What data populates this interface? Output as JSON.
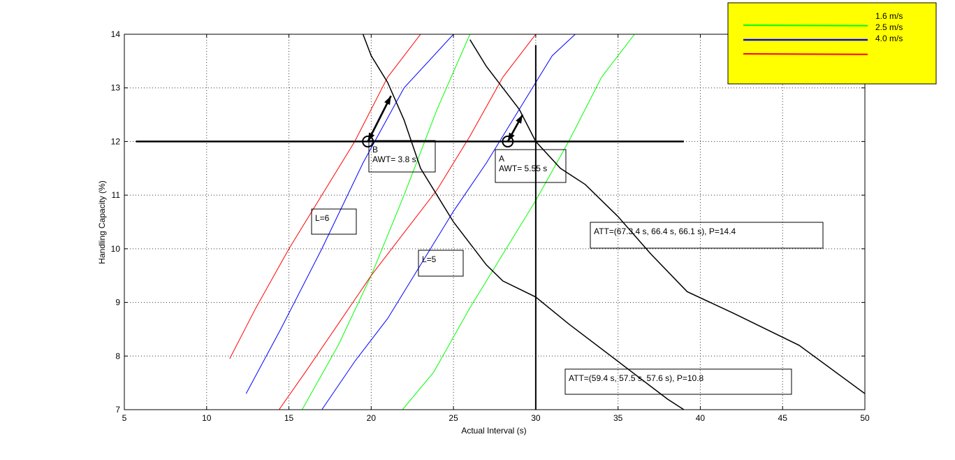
{
  "chart_data": {
    "type": "line",
    "xlabel": "Actual Interval (s)",
    "ylabel": "Handling Capacity (%)",
    "xlim": [
      5,
      50
    ],
    "ylim": [
      7,
      14
    ],
    "xticks": [
      "5",
      "10",
      "15",
      "20",
      "25",
      "30",
      "35",
      "40",
      "45",
      "50"
    ],
    "yticks": [
      "7",
      "8",
      "9",
      "10",
      "11",
      "12",
      "13",
      "14"
    ],
    "grid": true,
    "legend": {
      "placement": "top-right",
      "background": "#ffff00",
      "entries": [
        {
          "name": "1.6 m/s",
          "color": "#00ff00"
        },
        {
          "name": "2.5 m/s",
          "color": "#0000ff"
        },
        {
          "name": "4.0 m/s",
          "color": "#ff0000"
        }
      ]
    },
    "series": [
      {
        "name": "1.6 m/s",
        "group": "L=6",
        "color": "#00ff00",
        "x": [
          15.8,
          18,
          20,
          22,
          24,
          26
        ],
        "y": [
          7.0,
          8.2,
          9.5,
          11.0,
          12.6,
          14.0
        ]
      },
      {
        "name": "2.5 m/s",
        "group": "L=6",
        "color": "#0000ff",
        "x": [
          12.4,
          14.5,
          17,
          19.5,
          22,
          25
        ],
        "y": [
          7.3,
          8.5,
          10.0,
          11.6,
          13.0,
          14.0
        ]
      },
      {
        "name": "4.0 m/s",
        "group": "L=6",
        "color": "#ff0000",
        "x": [
          11.4,
          13,
          15,
          17,
          19,
          21,
          23
        ],
        "y": [
          7.95,
          8.9,
          10.0,
          11.0,
          12.0,
          13.2,
          14.0
        ]
      },
      {
        "name": "1.6 m/s",
        "group": "L=5",
        "color": "#00ff00",
        "x": [
          21.9,
          23.8,
          26,
          28,
          30,
          32,
          34,
          36
        ],
        "y": [
          7.0,
          7.7,
          8.9,
          9.9,
          10.9,
          12.0,
          13.2,
          14.0
        ]
      },
      {
        "name": "2.5 m/s",
        "group": "L=5",
        "color": "#0000ff",
        "x": [
          17,
          19,
          21,
          23,
          25,
          27,
          29,
          31,
          32.4
        ],
        "y": [
          7.0,
          7.9,
          8.7,
          9.7,
          10.7,
          11.6,
          12.6,
          13.6,
          14.0
        ]
      },
      {
        "name": "4.0 m/s",
        "group": "L=5",
        "color": "#ff0000",
        "x": [
          14.4,
          16,
          18,
          20,
          22,
          24,
          26,
          28,
          30
        ],
        "y": [
          7.0,
          7.7,
          8.6,
          9.5,
          10.3,
          11.1,
          12.1,
          13.2,
          14.0
        ]
      },
      {
        "name": "",
        "group": "ATT P=10.8",
        "color": "#000000",
        "x": [
          19.5,
          20,
          21,
          22,
          23,
          25,
          27,
          28,
          30,
          32,
          35,
          38,
          39
        ],
        "y": [
          14.0,
          13.6,
          13.1,
          12.4,
          11.5,
          10.5,
          9.7,
          9.4,
          9.1,
          8.6,
          7.9,
          7.2,
          7.0
        ]
      },
      {
        "name": "",
        "group": "ATT P=14.4",
        "color": "#000000",
        "x": [
          26,
          27,
          29,
          30,
          31.5,
          33,
          35,
          37,
          39.2,
          42,
          46,
          50
        ],
        "y": [
          13.9,
          13.4,
          12.6,
          12.0,
          11.5,
          11.2,
          10.6,
          9.9,
          9.2,
          8.8,
          8.2,
          7.3
        ]
      }
    ],
    "reference_lines": [
      {
        "orientation": "horizontal",
        "y": 12.0,
        "x_from": 5.7,
        "x_to": 39.0
      },
      {
        "orientation": "vertical",
        "x": 30.0,
        "y_from": 7.0,
        "y_to": 13.8
      }
    ],
    "points": [
      {
        "label": "B",
        "x": 19.8,
        "y": 12.0
      },
      {
        "label": "A",
        "x": 28.3,
        "y": 12.0
      }
    ],
    "arrows": [
      {
        "x1": 19.8,
        "y1": 12.0,
        "x2": 21.2,
        "y2": 12.85
      },
      {
        "x1": 21.2,
        "y1": 12.85,
        "x2": 19.8,
        "y2": 12.0
      },
      {
        "x1": 28.3,
        "y1": 12.0,
        "x2": 29.2,
        "y2": 12.5
      },
      {
        "x1": 29.2,
        "y1": 12.5,
        "x2": 28.3,
        "y2": 12.0
      }
    ],
    "annotations": [
      {
        "lines": [
          "B",
          "AWT= 3.8 s"
        ]
      },
      {
        "lines": [
          "A",
          "AWT= 5.55 s"
        ]
      },
      {
        "lines": [
          "L=6"
        ]
      },
      {
        "lines": [
          "L=5"
        ]
      },
      {
        "lines": [
          "ATT=(67.3.4 s, 66.4 s, 66.1 s), P=14.4"
        ]
      },
      {
        "lines": [
          "ATT=(59.4 s, 57.5 s, 57.6 s),  P=10.8"
        ]
      }
    ]
  }
}
